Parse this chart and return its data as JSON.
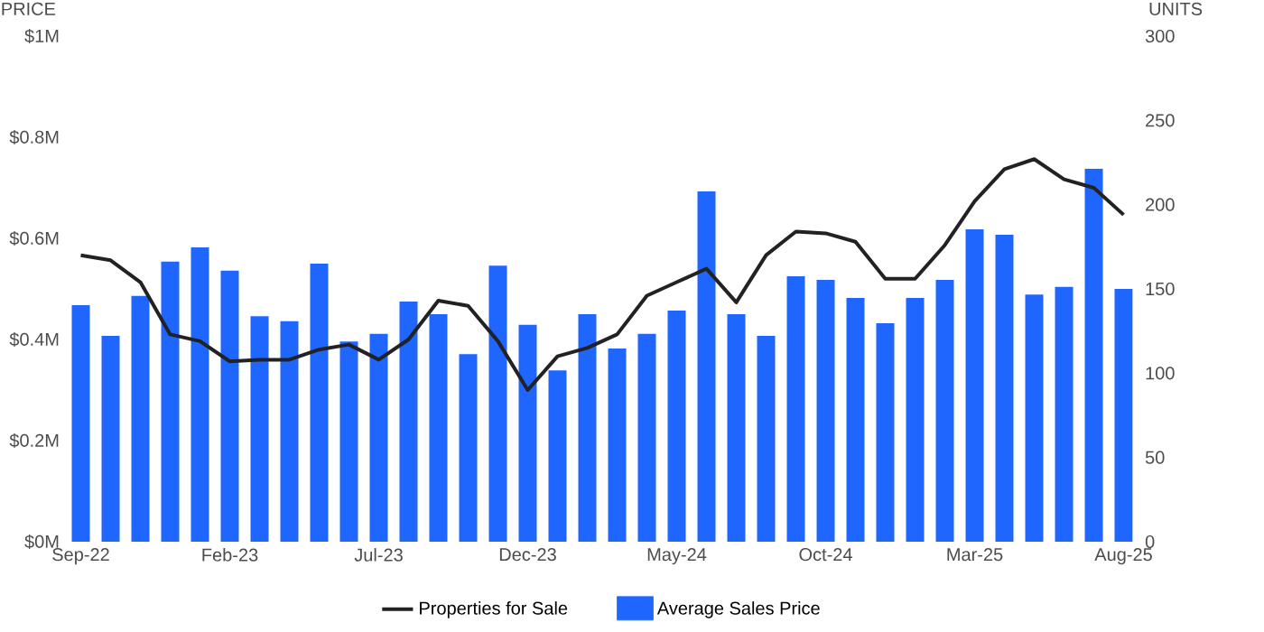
{
  "chart_data": {
    "type": "bar",
    "ylabel": "PRICE",
    "y2label": "UNITS",
    "categories": [
      "Sep-22",
      null,
      null,
      null,
      null,
      "Feb-23",
      null,
      null,
      null,
      null,
      "Jul-23",
      null,
      null,
      null,
      null,
      "Dec-23",
      null,
      null,
      null,
      null,
      "May-24",
      null,
      null,
      null,
      null,
      "Oct-24",
      null,
      null,
      null,
      null,
      "Mar-25",
      null,
      null,
      null,
      null,
      "Aug-25"
    ],
    "series": [
      {
        "name": "Properties for Sale",
        "type": "line",
        "axis": "y2",
        "color": "#222222",
        "values": [
          170,
          167,
          154,
          123,
          119,
          107,
          108,
          108,
          114,
          117,
          108,
          120,
          143,
          140,
          119,
          90,
          110,
          115,
          123,
          146,
          154,
          162,
          142,
          170,
          184,
          183,
          178,
          156,
          156,
          176,
          202,
          221,
          227,
          215,
          210,
          194
        ]
      },
      {
        "name": "Average Sales Price",
        "axis": "y",
        "color": "#1f66ff",
        "values": [
          0.468,
          0.407,
          0.486,
          0.554,
          0.582,
          0.536,
          0.446,
          0.436,
          0.55,
          0.396,
          0.411,
          0.475,
          0.45,
          0.371,
          0.546,
          0.429,
          0.339,
          0.45,
          0.382,
          0.411,
          0.457,
          0.693,
          0.45,
          0.407,
          0.525,
          0.518,
          0.482,
          0.432,
          0.482,
          0.518,
          0.618,
          0.607,
          0.489,
          0.504,
          0.738,
          0.5
        ]
      }
    ],
    "ylim": [
      0,
      1
    ],
    "yticks": [
      {
        "value": 0,
        "label": "$0M"
      },
      {
        "value": 0.2,
        "label": "$0.2M"
      },
      {
        "value": 0.4,
        "label": "$0.4M"
      },
      {
        "value": 0.6,
        "label": "$0.6M"
      },
      {
        "value": 0.8,
        "label": "$0.8M"
      },
      {
        "value": 1,
        "label": "$1M"
      }
    ],
    "y2lim": [
      0,
      300
    ],
    "y2ticks": [
      0,
      50,
      100,
      150,
      200,
      250,
      300
    ],
    "legend": "bottom",
    "marker": "none"
  }
}
